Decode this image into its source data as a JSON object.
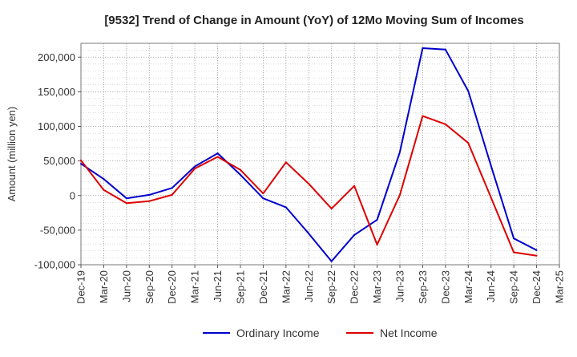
{
  "chart_data": {
    "type": "line",
    "title": "[9532]  Trend of Change in Amount (YoY) of 12Mo Moving Sum of Incomes",
    "xlabel": "",
    "ylabel": "Amount (million yen)",
    "ylim": [
      -100000,
      220000
    ],
    "yticks": [
      -100000,
      -50000,
      0,
      50000,
      100000,
      150000,
      200000
    ],
    "ytick_labels": [
      "-100,000",
      "-50,000",
      "0",
      "50,000",
      "100,000",
      "150,000",
      "200,000"
    ],
    "x": [
      "Dec-19",
      "Mar-20",
      "Jun-20",
      "Sep-20",
      "Dec-20",
      "Mar-21",
      "Jun-21",
      "Sep-21",
      "Dec-21",
      "Mar-22",
      "Jun-22",
      "Sep-22",
      "Dec-22",
      "Mar-23",
      "Jun-23",
      "Sep-23",
      "Dec-23",
      "Mar-24",
      "Jun-24",
      "Sep-24",
      "Dec-24",
      "Mar-25"
    ],
    "grid": true,
    "legend_position": "bottom-center",
    "series": [
      {
        "name": "Ordinary Income",
        "color": "#0000cc",
        "values": [
          46000,
          24000,
          -4000,
          1000,
          11000,
          42000,
          61000,
          30000,
          -4000,
          -17000,
          -55000,
          -95000,
          -57000,
          -35000,
          63000,
          213000,
          211000,
          151000,
          43000,
          -62000,
          -79000,
          null
        ]
      },
      {
        "name": "Net Income",
        "color": "#dd0000",
        "values": [
          51000,
          8000,
          -11000,
          -8000,
          1000,
          39000,
          56000,
          37000,
          3000,
          48000,
          17000,
          -19000,
          14000,
          -71000,
          1000,
          115000,
          103000,
          76000,
          -3000,
          -82000,
          -87000,
          null
        ]
      }
    ]
  }
}
